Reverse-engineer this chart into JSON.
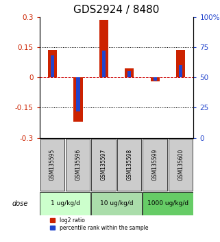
{
  "title": "GDS2924 / 8480",
  "samples": [
    "GSM135595",
    "GSM135596",
    "GSM135597",
    "GSM135598",
    "GSM135599",
    "GSM135600"
  ],
  "log2_ratio": [
    0.135,
    -0.22,
    0.285,
    0.045,
    -0.02,
    0.135
  ],
  "percentile_rank_raw": [
    68,
    22,
    72,
    55,
    47,
    60
  ],
  "ylim_left": [
    -0.3,
    0.3
  ],
  "ylim_right": [
    0,
    100
  ],
  "yticks_left": [
    -0.3,
    -0.15,
    0,
    0.15,
    0.3
  ],
  "yticks_right": [
    0,
    25,
    50,
    75,
    100
  ],
  "ytick_labels_left": [
    "-0.3",
    "-0.15",
    "0",
    "0.15",
    "0.3"
  ],
  "ytick_labels_right": [
    "0",
    "25",
    "50",
    "75",
    "100%"
  ],
  "hlines": [
    0.15,
    0,
    -0.15
  ],
  "dose_groups": [
    {
      "label": "1 ug/kg/d",
      "samples": [
        0,
        1
      ],
      "color": "#ccffcc"
    },
    {
      "label": "10 ug/kg/d",
      "samples": [
        2,
        3
      ],
      "color": "#aaddaa"
    },
    {
      "label": "1000 ug/kg/d",
      "samples": [
        4,
        5
      ],
      "color": "#66cc66"
    }
  ],
  "bar_width": 0.35,
  "red_color": "#cc2200",
  "blue_color": "#2244cc",
  "sample_bg_color": "#cccccc",
  "legend_red_label": "log2 ratio",
  "legend_blue_label": "percentile rank within the sample",
  "dose_label": "dose",
  "title_fontsize": 11,
  "axis_fontsize": 8,
  "tick_fontsize": 7.5
}
